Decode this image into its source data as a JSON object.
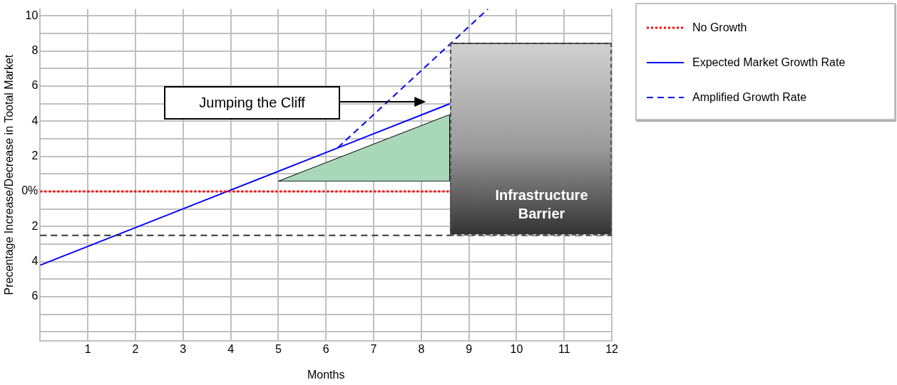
{
  "chart_data": {
    "type": "line",
    "xlabel": "Months",
    "ylabel": "Precentage Increase/Decrease in Tootal Market",
    "xlim": [
      0,
      12
    ],
    "xticks": [
      {
        "value": 0,
        "label": null
      },
      1,
      2,
      3,
      4,
      5,
      6,
      7,
      8,
      9,
      10,
      11,
      12
    ],
    "ylim": [
      -8.5,
      10.4
    ],
    "yticks": [
      {
        "value": -8,
        "label": null
      },
      {
        "value": -7,
        "label": null
      },
      {
        "value": -6,
        "label": "6"
      },
      {
        "value": -5,
        "label": null
      },
      {
        "value": -4,
        "label": "4"
      },
      {
        "value": -3,
        "label": null
      },
      {
        "value": -2,
        "label": "2"
      },
      {
        "value": -1,
        "label": null
      },
      {
        "value": 0,
        "label": "0%"
      },
      {
        "value": 1,
        "label": null
      },
      2,
      {
        "value": 3,
        "label": null
      },
      4,
      {
        "value": 5,
        "label": null
      },
      6,
      {
        "value": 7,
        "label": null
      },
      8,
      {
        "value": 9,
        "label": null
      },
      10
    ],
    "grid": true,
    "legend": "top right",
    "marker": "none",
    "series": [
      {
        "name": "No Growth",
        "type": "line",
        "color": "#ff0000",
        "line_style": "dotted",
        "x": [
          0,
          8.6
        ],
        "values": [
          0,
          0
        ]
      },
      {
        "name": "Expected Market Growth Rate",
        "type": "line",
        "color": "#0000ff",
        "line_style": "solid",
        "x": [
          0,
          8.6
        ],
        "values": [
          -4.2,
          5.0
        ]
      },
      {
        "name": "Amplified Growth Rate",
        "type": "line",
        "color": "#0000ff",
        "line_style": "dashed",
        "x": [
          6.25,
          9.4
        ],
        "values": [
          2.5,
          10.4
        ]
      }
    ],
    "ref_lines": [
      {
        "axis": "y",
        "value": -2.5,
        "color": "#333333",
        "line_style": "dashed"
      }
    ],
    "annotations": [
      "Jumping the Cliff",
      "Infrastructure Barrier"
    ]
  }
}
